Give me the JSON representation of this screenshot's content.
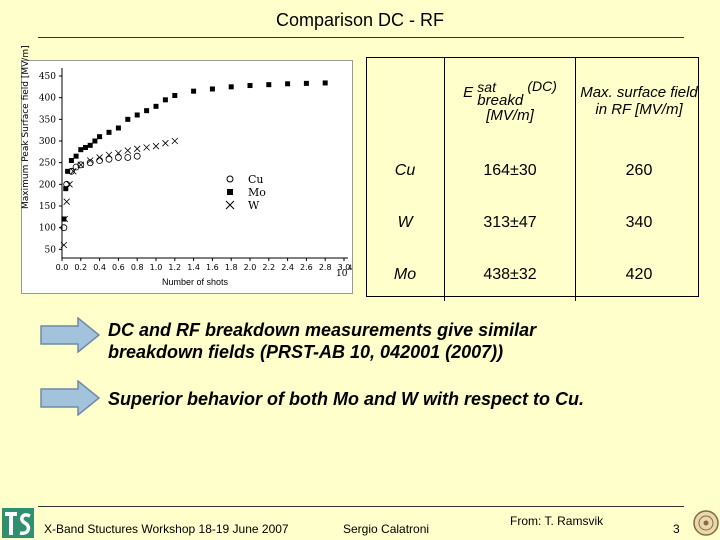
{
  "title": "Comparison DC - RF",
  "figure": {
    "ylabel": "Maximum Peak Surface field [MV/m]",
    "xlabel": "Number of shots",
    "y_ticks": [
      "450",
      "400",
      "350",
      "300",
      "250",
      "200",
      "150",
      "100",
      "50"
    ],
    "x_ticks": [
      "0.0",
      "0.2",
      "0.4",
      "0.6",
      "0.8",
      "1.0",
      "1.2",
      "1.4",
      "1.6",
      "1.8",
      "2.0",
      "2.2",
      "2.4",
      "2.6",
      "2.8",
      "3.0"
    ],
    "x_exponent": "10",
    "legend": [
      {
        "symbol": "circle",
        "label": "Cu"
      },
      {
        "symbol": "square",
        "label": "Mo"
      },
      {
        "symbol": "cross",
        "label": "W"
      }
    ]
  },
  "table": {
    "header_dc_main": "E",
    "header_dc_sup": "sat",
    "header_dc_sub": "breakd",
    "header_dc_tail": "(DC)",
    "header_dc_unit": "[MV/m]",
    "header_rf": "Max. surface field in RF [MV/m]",
    "rows": [
      {
        "material": "Cu",
        "dc": "164±30",
        "rf": "260"
      },
      {
        "material": "W",
        "dc": "313±47",
        "rf": "340"
      },
      {
        "material": "Mo",
        "dc": "438±32",
        "rf": "420"
      }
    ]
  },
  "bullets": [
    "DC and RF breakdown measurements give similar breakdown fields (PRST-AB 10, 042001 (2007))",
    "Superior behavior of both Mo and W with respect to Cu."
  ],
  "footer": {
    "workshop": "X-Band Stuctures Workshop 18-19 June 2007",
    "author": "Sergio Calatroni",
    "source": "From: T. Ramsvik",
    "page": "3"
  },
  "colors": {
    "background": "#ffffcc",
    "arrow_fill": "#a3c2dc",
    "arrow_stroke": "#6f8aa6"
  }
}
